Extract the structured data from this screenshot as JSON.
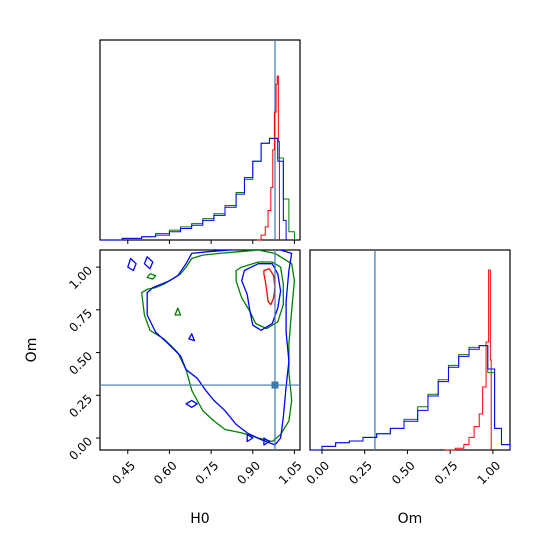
{
  "chart_data": {
    "type": "corner",
    "parameters": [
      "H0",
      "Om"
    ],
    "truth": {
      "H0": 0.98,
      "Om": 0.31
    },
    "colors": {
      "truth": "#3a78b0",
      "red": "#ff0000",
      "green": "#008000",
      "blue": "#0000ff"
    },
    "axes": {
      "h0": {
        "xlabel": "H0",
        "xlim": [
          0.35,
          1.07
        ],
        "ticks": [
          0.45,
          0.6,
          0.75,
          0.9,
          1.05
        ],
        "tick_labels": [
          "0.45",
          "0.60",
          "0.75",
          "0.90",
          "1.05"
        ]
      },
      "om": {
        "label": "Om",
        "lim": [
          -0.07,
          1.1
        ],
        "ticks": [
          0.0,
          0.25,
          0.5,
          0.75,
          1.0
        ],
        "tick_labels": [
          "0.00",
          "0.25",
          "0.50",
          "0.75",
          "1.00"
        ]
      }
    },
    "hist_h0": {
      "series": [
        {
          "color": "red",
          "values": [
            [
              0.915,
              0
            ],
            [
              0.93,
              0.03
            ],
            [
              0.945,
              0.08
            ],
            [
              0.955,
              0.18
            ],
            [
              0.965,
              0.32
            ],
            [
              0.972,
              0.55
            ],
            [
              0.978,
              0.78
            ],
            [
              0.984,
              0.95
            ],
            [
              0.988,
              1.0
            ],
            [
              0.992,
              0.6
            ],
            [
              0.996,
              0.0
            ]
          ]
        },
        {
          "color": "green",
          "values": [
            [
              0.35,
              0
            ],
            [
              0.43,
              0.01
            ],
            [
              0.5,
              0.02
            ],
            [
              0.55,
              0.04
            ],
            [
              0.6,
              0.06
            ],
            [
              0.64,
              0.08
            ],
            [
              0.68,
              0.1
            ],
            [
              0.72,
              0.13
            ],
            [
              0.76,
              0.16
            ],
            [
              0.8,
              0.21
            ],
            [
              0.84,
              0.29
            ],
            [
              0.87,
              0.37
            ],
            [
              0.9,
              0.48
            ],
            [
              0.93,
              0.59
            ],
            [
              0.96,
              0.62
            ],
            [
              0.99,
              0.5
            ],
            [
              1.01,
              0.25
            ],
            [
              1.03,
              0.05
            ],
            [
              1.05,
              0.0
            ]
          ]
        },
        {
          "color": "blue",
          "values": [
            [
              0.35,
              0
            ],
            [
              0.43,
              0.01
            ],
            [
              0.5,
              0.02
            ],
            [
              0.55,
              0.03
            ],
            [
              0.6,
              0.05
            ],
            [
              0.64,
              0.07
            ],
            [
              0.68,
              0.09
            ],
            [
              0.72,
              0.12
            ],
            [
              0.76,
              0.15
            ],
            [
              0.8,
              0.2
            ],
            [
              0.84,
              0.28
            ],
            [
              0.87,
              0.38
            ],
            [
              0.9,
              0.48
            ],
            [
              0.93,
              0.59
            ],
            [
              0.96,
              0.62
            ],
            [
              0.99,
              0.48
            ],
            [
              1.01,
              0.12
            ],
            [
              1.02,
              0.0
            ]
          ]
        }
      ]
    },
    "hist_om": {
      "series": [
        {
          "color": "red",
          "values": [
            [
              0.72,
              0
            ],
            [
              0.78,
              0.01
            ],
            [
              0.83,
              0.03
            ],
            [
              0.86,
              0.07
            ],
            [
              0.89,
              0.13
            ],
            [
              0.92,
              0.2
            ],
            [
              0.94,
              0.35
            ],
            [
              0.96,
              0.6
            ],
            [
              0.975,
              1.0
            ],
            [
              0.985,
              0.5
            ],
            [
              0.99,
              0.0
            ]
          ]
        },
        {
          "color": "green",
          "values": [
            [
              -0.07,
              0
            ],
            [
              0.0,
              0.02
            ],
            [
              0.08,
              0.04
            ],
            [
              0.16,
              0.05
            ],
            [
              0.24,
              0.07
            ],
            [
              0.32,
              0.09
            ],
            [
              0.4,
              0.12
            ],
            [
              0.48,
              0.17
            ],
            [
              0.56,
              0.24
            ],
            [
              0.62,
              0.31
            ],
            [
              0.68,
              0.39
            ],
            [
              0.74,
              0.47
            ],
            [
              0.8,
              0.53
            ],
            [
              0.86,
              0.57
            ],
            [
              0.92,
              0.58
            ],
            [
              0.97,
              0.43
            ],
            [
              1.01,
              0.12
            ],
            [
              1.05,
              0.03
            ],
            [
              1.1,
              0.0
            ]
          ]
        },
        {
          "color": "blue",
          "values": [
            [
              -0.07,
              0
            ],
            [
              0.0,
              0.02
            ],
            [
              0.08,
              0.04
            ],
            [
              0.16,
              0.05
            ],
            [
              0.24,
              0.07
            ],
            [
              0.32,
              0.09
            ],
            [
              0.4,
              0.12
            ],
            [
              0.48,
              0.16
            ],
            [
              0.56,
              0.22
            ],
            [
              0.62,
              0.3
            ],
            [
              0.68,
              0.38
            ],
            [
              0.74,
              0.46
            ],
            [
              0.8,
              0.52
            ],
            [
              0.86,
              0.56
            ],
            [
              0.92,
              0.58
            ],
            [
              0.97,
              0.45
            ],
            [
              1.01,
              0.12
            ],
            [
              1.05,
              0.03
            ],
            [
              1.1,
              0.0
            ]
          ]
        }
      ]
    },
    "contours": [
      {
        "color": "green",
        "points": [
          [
            0.5,
            0.85
          ],
          [
            0.51,
            0.72
          ],
          [
            0.53,
            0.63
          ],
          [
            0.58,
            0.58
          ],
          [
            0.63,
            0.5
          ],
          [
            0.66,
            0.4
          ],
          [
            0.68,
            0.28
          ],
          [
            0.7,
            0.22
          ],
          [
            0.72,
            0.16
          ],
          [
            0.76,
            0.1
          ],
          [
            0.8,
            0.05
          ],
          [
            0.86,
            0.03
          ],
          [
            0.92,
            0.0
          ],
          [
            0.97,
            -0.02
          ],
          [
            1.0,
            0.02
          ],
          [
            1.03,
            0.1
          ],
          [
            1.04,
            0.22
          ],
          [
            1.03,
            0.38
          ],
          [
            1.03,
            0.55
          ],
          [
            1.04,
            0.75
          ],
          [
            1.05,
            0.92
          ],
          [
            1.04,
            1.02
          ],
          [
            0.98,
            1.08
          ],
          [
            0.92,
            1.1
          ],
          [
            0.85,
            1.09
          ],
          [
            0.78,
            1.08
          ],
          [
            0.72,
            1.07
          ],
          [
            0.68,
            1.05
          ],
          [
            0.66,
            1.0
          ],
          [
            0.64,
            0.96
          ],
          [
            0.61,
            0.93
          ],
          [
            0.58,
            0.9
          ],
          [
            0.55,
            0.88
          ],
          [
            0.52,
            0.87
          ]
        ]
      },
      {
        "color": "blue",
        "points": [
          [
            0.52,
            0.85
          ],
          [
            0.52,
            0.72
          ],
          [
            0.55,
            0.62
          ],
          [
            0.59,
            0.56
          ],
          [
            0.64,
            0.48
          ],
          [
            0.66,
            0.4
          ],
          [
            0.7,
            0.35
          ],
          [
            0.73,
            0.28
          ],
          [
            0.76,
            0.22
          ],
          [
            0.8,
            0.16
          ],
          [
            0.84,
            0.08
          ],
          [
            0.88,
            0.03
          ],
          [
            0.93,
            -0.01
          ],
          [
            0.98,
            -0.04
          ],
          [
            1.0,
            0.0
          ],
          [
            1.01,
            0.12
          ],
          [
            1.02,
            0.3
          ],
          [
            1.03,
            0.45
          ],
          [
            1.02,
            0.62
          ],
          [
            1.02,
            0.8
          ],
          [
            1.03,
            0.98
          ],
          [
            1.04,
            1.08
          ],
          [
            0.98,
            1.11
          ],
          [
            0.9,
            1.11
          ],
          [
            0.82,
            1.1
          ],
          [
            0.74,
            1.09
          ],
          [
            0.68,
            1.08
          ],
          [
            0.66,
            1.02
          ],
          [
            0.63,
            0.95
          ],
          [
            0.6,
            0.92
          ],
          [
            0.57,
            0.9
          ],
          [
            0.54,
            0.88
          ]
        ]
      },
      {
        "color": "green",
        "points": [
          [
            0.86,
            1.0
          ],
          [
            0.92,
            1.03
          ],
          [
            0.97,
            1.03
          ],
          [
            1.0,
            1.0
          ],
          [
            1.01,
            0.9
          ],
          [
            1.01,
            0.78
          ],
          [
            0.99,
            0.68
          ],
          [
            0.95,
            0.64
          ],
          [
            0.91,
            0.67
          ],
          [
            0.89,
            0.74
          ],
          [
            0.86,
            0.82
          ],
          [
            0.84,
            0.92
          ],
          [
            0.84,
            0.98
          ]
        ]
      },
      {
        "color": "blue",
        "points": [
          [
            0.87,
            0.98
          ],
          [
            0.92,
            1.02
          ],
          [
            0.97,
            1.02
          ],
          [
            0.99,
            0.96
          ],
          [
            1.0,
            0.86
          ],
          [
            0.99,
            0.76
          ],
          [
            0.97,
            0.67
          ],
          [
            0.93,
            0.63
          ],
          [
            0.9,
            0.66
          ],
          [
            0.89,
            0.74
          ],
          [
            0.88,
            0.84
          ],
          [
            0.86,
            0.92
          ]
        ]
      },
      {
        "color": "red",
        "points": [
          [
            0.94,
            0.98
          ],
          [
            0.96,
            0.99
          ],
          [
            0.975,
            0.95
          ],
          [
            0.98,
            0.88
          ],
          [
            0.975,
            0.82
          ],
          [
            0.965,
            0.78
          ],
          [
            0.955,
            0.8
          ],
          [
            0.95,
            0.86
          ],
          [
            0.945,
            0.92
          ],
          [
            0.94,
            0.96
          ]
        ]
      },
      {
        "color": "blue",
        "points": [
          [
            0.46,
            1.05
          ],
          [
            0.48,
            1.02
          ],
          [
            0.47,
            0.98
          ],
          [
            0.45,
            1.0
          ]
        ]
      },
      {
        "color": "blue",
        "points": [
          [
            0.52,
            1.06
          ],
          [
            0.54,
            1.03
          ],
          [
            0.53,
            0.99
          ],
          [
            0.51,
            1.02
          ]
        ]
      },
      {
        "color": "green",
        "points": [
          [
            0.53,
            0.96
          ],
          [
            0.55,
            0.95
          ],
          [
            0.54,
            0.93
          ],
          [
            0.52,
            0.94
          ]
        ]
      },
      {
        "color": "green",
        "points": [
          [
            0.62,
            0.72
          ],
          [
            0.63,
            0.76
          ],
          [
            0.64,
            0.72
          ]
        ]
      },
      {
        "color": "blue",
        "points": [
          [
            0.67,
            0.58
          ],
          [
            0.68,
            0.61
          ],
          [
            0.69,
            0.57
          ]
        ]
      },
      {
        "color": "blue",
        "points": [
          [
            0.66,
            0.2
          ],
          [
            0.68,
            0.22
          ],
          [
            0.7,
            0.2
          ],
          [
            0.68,
            0.18
          ]
        ]
      },
      {
        "color": "blue",
        "points": [
          [
            0.88,
            0.02
          ],
          [
            0.9,
            0.0
          ],
          [
            0.88,
            -0.02
          ]
        ]
      },
      {
        "color": "blue",
        "points": [
          [
            0.94,
            0.0
          ],
          [
            0.96,
            -0.02
          ],
          [
            0.94,
            -0.04
          ]
        ]
      }
    ]
  }
}
